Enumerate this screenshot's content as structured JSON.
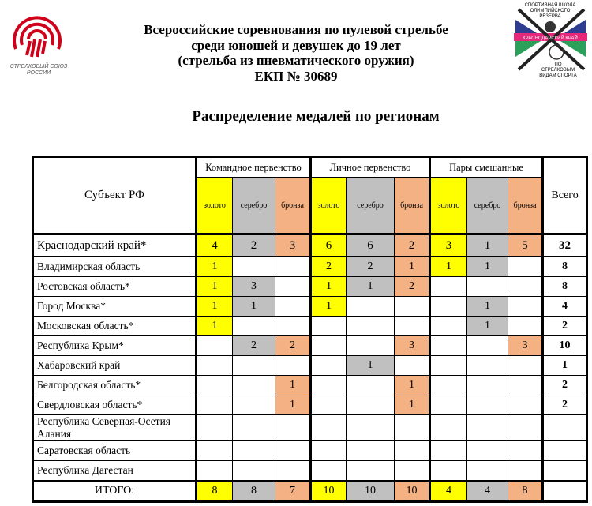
{
  "header": {
    "title_lines": [
      "Всероссийские соревнования по пулевой стрельбе",
      "среди юношей и девушек до 19 лет",
      "(стрельба из пневматического оружия)",
      "ЕКП № 30689"
    ],
    "subtitle": "Распределение медалей по регионам",
    "logo_left_text": "СТРЕЛКОВЫЙ СОЮЗ РОССИИ",
    "logo_right_text": "СПОРТИВНАЯ ШКОЛА ОЛИМПИЙСКОГО РЕЗЕРВА КРАСНОДАРСКИЙ КРАЙ ПО СТРЕЛКОВЫМ ВИДАМ СПОРТА"
  },
  "colors": {
    "gold": "#ffff00",
    "silver": "#c0c0c0",
    "bronze": "#f4b183",
    "brand_red": "#d0021b"
  },
  "table": {
    "subject_header": "Субъект РФ",
    "total_header": "Всего",
    "groups": [
      "Командное первенство",
      "Личное первенство",
      "Пары смешанные"
    ],
    "medals": [
      "золото",
      "серебро",
      "бронза"
    ],
    "rows": [
      {
        "subject": "Краснодарский край*",
        "values": [
          "4",
          "2",
          "3",
          "6",
          "6",
          "2",
          "3",
          "1",
          "5"
        ],
        "total": "32"
      },
      {
        "subject": "Владимирская область",
        "values": [
          "1",
          "",
          "",
          "2",
          "2",
          "1",
          "1",
          "1",
          ""
        ],
        "total": "8"
      },
      {
        "subject": "Ростовская область*",
        "values": [
          "1",
          "3",
          "",
          "1",
          "1",
          "2",
          "",
          "",
          ""
        ],
        "total": "8"
      },
      {
        "subject": "Город Москва*",
        "values": [
          "1",
          "1",
          "",
          "1",
          "",
          "",
          "",
          "1",
          ""
        ],
        "total": "4"
      },
      {
        "subject": "Московская область*",
        "values": [
          "1",
          "",
          "",
          "",
          "",
          "",
          "",
          "1",
          ""
        ],
        "total": "2"
      },
      {
        "subject": "Республика Крым*",
        "values": [
          "",
          "2",
          "2",
          "",
          "",
          "3",
          "",
          "",
          "3"
        ],
        "total": "10"
      },
      {
        "subject": "Хабаровский край",
        "values": [
          "",
          "",
          "",
          "",
          "1",
          "",
          "",
          "",
          ""
        ],
        "total": "1"
      },
      {
        "subject": "Белгородская область*",
        "values": [
          "",
          "",
          "1",
          "",
          "",
          "1",
          "",
          "",
          ""
        ],
        "total": "2"
      },
      {
        "subject": "Свердловская область*",
        "values": [
          "",
          "",
          "1",
          "",
          "",
          "1",
          "",
          "",
          ""
        ],
        "total": "2"
      },
      {
        "subject": "Республика Северная-Осетия Алания",
        "values": [
          "",
          "",
          "",
          "",
          "",
          "",
          "",
          "",
          ""
        ],
        "total": ""
      },
      {
        "subject": "Саратовская область",
        "values": [
          "",
          "",
          "",
          "",
          "",
          "",
          "",
          "",
          ""
        ],
        "total": ""
      },
      {
        "subject": "Республика Дагестан",
        "values": [
          "",
          "",
          "",
          "",
          "",
          "",
          "",
          "",
          ""
        ],
        "total": ""
      }
    ],
    "itogo": {
      "label": "ИТОГО:",
      "values": [
        "8",
        "8",
        "7",
        "10",
        "10",
        "10",
        "4",
        "4",
        "8"
      ],
      "total": ""
    }
  }
}
